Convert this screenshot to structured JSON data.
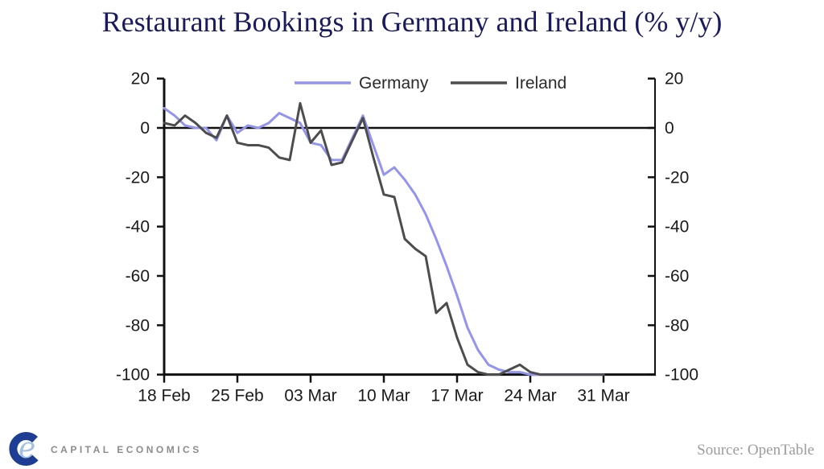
{
  "title": "Restaurant Bookings in Germany and Ireland (% y/y)",
  "colors": {
    "title": "#1a1b5e",
    "axis": "#111111",
    "germany_line": "#9394f0",
    "ireland_line": "#4d4d4d",
    "logo_mark_dark": "#1d3e94",
    "logo_mark_light": "#a6c0e2",
    "logo_text": "#8c8c8c",
    "source_text": "#9c9c9c"
  },
  "chart_data": {
    "type": "line",
    "title": "Restaurant Bookings in Germany and Ireland (% y/y)",
    "xlabel": "",
    "ylabel": "",
    "x_tick_labels": [
      "18 Feb",
      "25 Feb",
      "03 Mar",
      "10 Mar",
      "17 Mar",
      "24 Mar",
      "31 Mar"
    ],
    "x_tick_interval_days": 7,
    "x_start_label": "18 Feb",
    "y_ticks": [
      20,
      0,
      -20,
      -40,
      -60,
      -80,
      -100
    ],
    "ylim": [
      -100,
      20
    ],
    "grid": false,
    "zero_line": true,
    "dual_y_axis": true,
    "legend_position": "top-center",
    "series": [
      {
        "name": "Germany",
        "color": "#9394f0",
        "values": [
          8,
          5,
          1,
          0,
          0,
          -5,
          5,
          -2,
          1,
          0,
          2,
          6,
          4,
          2,
          -6,
          -7,
          -13,
          -13,
          -4,
          5,
          -7,
          -19,
          -16,
          -21,
          -27,
          -35,
          -45,
          -56,
          -68,
          -81,
          -90,
          -96,
          -98,
          -99,
          -99,
          -100,
          -100,
          -100,
          -100,
          -100,
          -100,
          -100,
          -100
        ]
      },
      {
        "name": "Ireland",
        "color": "#4d4d4d",
        "values": [
          2,
          1,
          5,
          2,
          -2,
          -4,
          5,
          -6,
          -7,
          -7,
          -8,
          -12,
          -13,
          10,
          -6,
          -1,
          -15,
          -14,
          -5,
          4,
          -12,
          -27,
          -28,
          -45,
          -49,
          -52,
          -75,
          -71,
          -85,
          -96,
          -99,
          -100,
          -100,
          -98,
          -96,
          -99,
          -100,
          -100,
          -100,
          -100,
          -100,
          -100,
          -100
        ]
      }
    ]
  },
  "footer": {
    "logo_text": "CAPITAL ECONOMICS",
    "source": "Source: OpenTable"
  }
}
